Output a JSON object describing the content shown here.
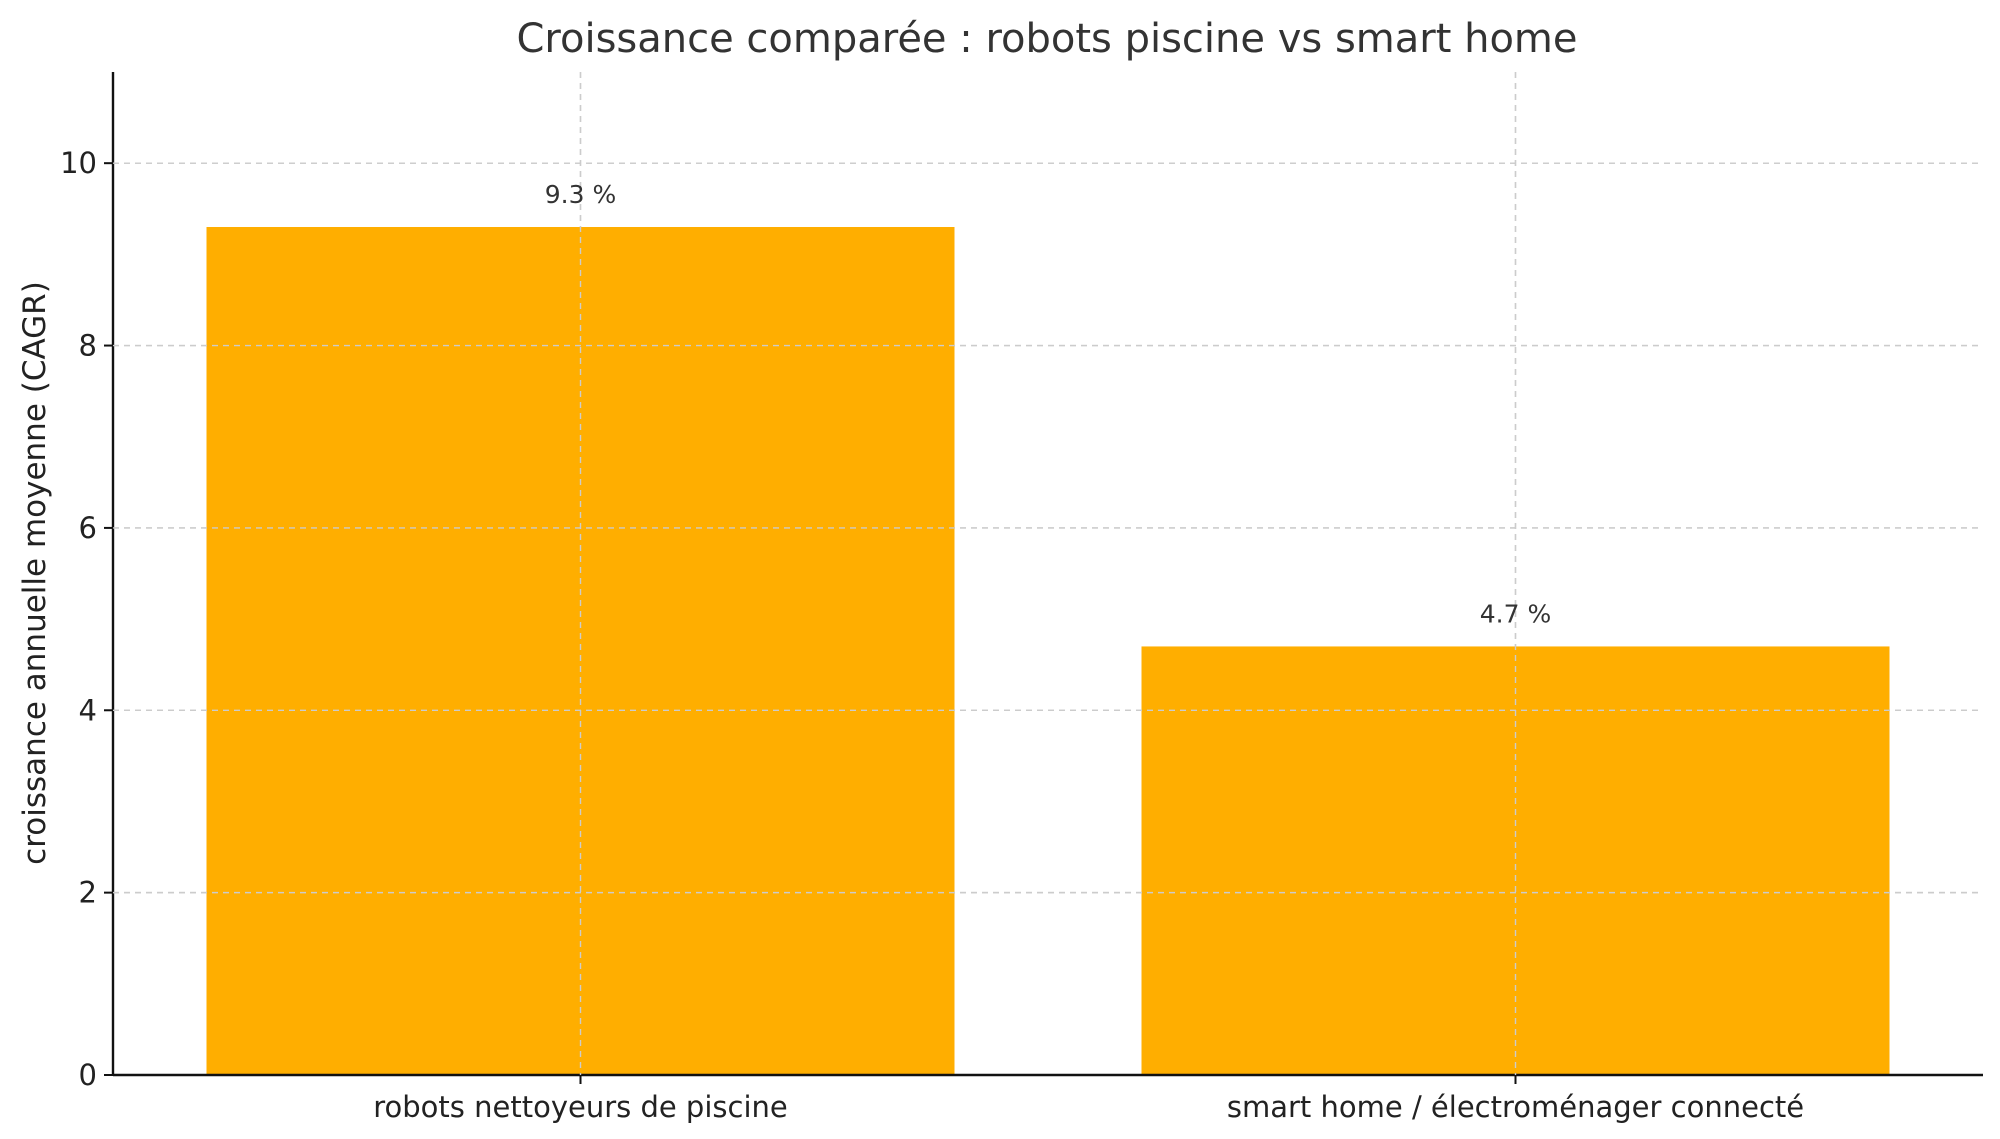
{
  "chart_data": {
    "type": "bar",
    "title": "Croissance comparée : robots piscine vs smart home",
    "xlabel": "",
    "ylabel": "croissance annuelle moyenne (CAGR)",
    "categories": [
      "robots nettoyeurs de piscine",
      "smart home / électroménager connecté"
    ],
    "values": [
      9.3,
      4.7
    ],
    "data_labels": [
      "9.3 %",
      "4.7 %"
    ],
    "yticks": [
      0,
      2,
      4,
      6,
      8,
      10
    ],
    "ytick_labels": [
      "0",
      "2",
      "4",
      "6",
      "8",
      "10"
    ],
    "ylim": [
      0,
      11
    ],
    "grid": true,
    "bar_color": "#FFAE00"
  }
}
